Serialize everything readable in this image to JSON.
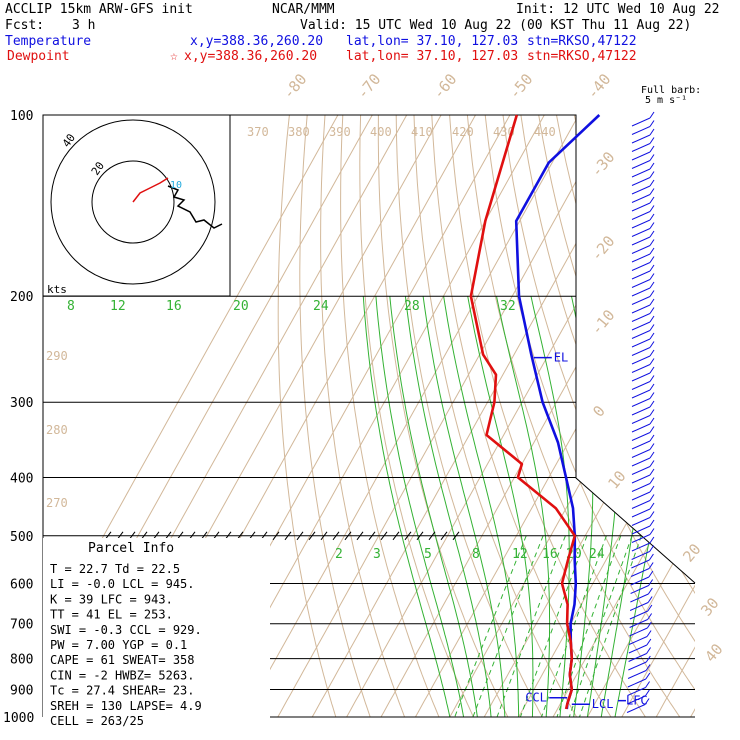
{
  "header": {
    "model": "ACCLIP 15km ARW-GFS init",
    "center": "NCAR/MMM",
    "init": "Init: 12 UTC Wed 10 Aug 22",
    "fcst_label": "Fcst:",
    "fcst_value": "3 h",
    "valid": "Valid: 15 UTC Wed 10 Aug 22 (00 KST Thu 11 Aug 22)"
  },
  "legend": {
    "temp": {
      "name": "Temperature",
      "xy": "x,y=388.36,260.20",
      "latlon": "lat,lon= 37.10, 127.03",
      "stn": "stn=RKSO,47122",
      "color": "#1010e0"
    },
    "dew": {
      "marker": "☆",
      "name": "Dewpoint",
      "xy": "x,y=388.36,260.20",
      "latlon": "lat,lon= 37.10, 127.03",
      "stn": "stn=RKSO,47122",
      "color": "#e01010"
    }
  },
  "barb_key": {
    "line1": "Full barb:",
    "line2": "5 m s⁻¹"
  },
  "hodograph": {
    "unit": "kts",
    "rings": [
      "20",
      "40"
    ],
    "marker": "10"
  },
  "chart_data": {
    "type": "line",
    "title": "",
    "y_scale": "log-pressure",
    "pressure_ticks": [
      100,
      200,
      300,
      400,
      500,
      600,
      700,
      800,
      900,
      1000
    ],
    "top_temp_labels": [
      "-80",
      "-70",
      "-60",
      "-50",
      "-40"
    ],
    "right_temp_labels": [
      "-30",
      "-20",
      "-10",
      "0",
      "10",
      "20",
      "30",
      "40"
    ],
    "theta_labels": [
      "370",
      "380",
      "390",
      "400",
      "410",
      "420",
      "430",
      "440"
    ],
    "theta_left_labels": [
      "290",
      "280",
      "270"
    ],
    "mixing_ratio_upper": [
      "8",
      "12",
      "16",
      "20",
      "24",
      "28",
      "32"
    ],
    "mixing_ratio_lower": [
      "2",
      "3",
      "5",
      "8",
      "12",
      "16",
      "20",
      "24"
    ],
    "series": [
      {
        "name": "Temperature",
        "color": "#1010e0",
        "points": [
          [
            100,
            -64
          ],
          [
            120,
            -71
          ],
          [
            150,
            -71
          ],
          [
            200,
            -58
          ],
          [
            250,
            -45
          ],
          [
            300,
            -34
          ],
          [
            350,
            -23
          ],
          [
            400,
            -15
          ],
          [
            450,
            -8
          ],
          [
            500,
            -3
          ],
          [
            550,
            1
          ],
          [
            600,
            5
          ],
          [
            650,
            8
          ],
          [
            700,
            10
          ],
          [
            750,
            13
          ],
          [
            800,
            16
          ],
          [
            850,
            18
          ],
          [
            900,
            21
          ],
          [
            950,
            22
          ],
          [
            970,
            22.7
          ]
        ]
      },
      {
        "name": "Dewpoint",
        "color": "#e01010",
        "points": [
          [
            100,
            -88
          ],
          [
            150,
            -80
          ],
          [
            200,
            -72
          ],
          [
            250,
            -59
          ],
          [
            270,
            -52
          ],
          [
            300,
            -48
          ],
          [
            340,
            -45
          ],
          [
            380,
            -30
          ],
          [
            400,
            -29
          ],
          [
            450,
            -13
          ],
          [
            500,
            -3
          ],
          [
            550,
            -1
          ],
          [
            600,
            1
          ],
          [
            650,
            6
          ],
          [
            700,
            9
          ],
          [
            750,
            13
          ],
          [
            800,
            16
          ],
          [
            850,
            18
          ],
          [
            900,
            21
          ],
          [
            950,
            22
          ],
          [
            970,
            22.5
          ]
        ]
      }
    ],
    "levels": [
      {
        "label": "EL",
        "pressure": 253,
        "color": "#1010e0"
      },
      {
        "label": "CCL",
        "pressure": 929,
        "color": "#1010e0"
      },
      {
        "label": "LCL",
        "pressure": 945,
        "color": "#1010e0"
      },
      {
        "label": "LFC",
        "pressure": 943,
        "color": "#1010e0"
      }
    ]
  },
  "parcel_info": {
    "title": "Parcel Info",
    "rows": [
      "T   =   22.7  Td =  22.5",
      "LI  =   -0.0  LCL =  945.",
      "K   =     39  LFC =  943.",
      "TT  =     41  EL  =  253.",
      "SWI =   -0.3  CCL =  929.",
      "PW  =   7.00  YGP =   0.1",
      "CAPE =    61  SWEAT=  358",
      "CIN  =    -2  HWBZ= 5263.",
      "Tc  =   27.4  SHEAR=  23.",
      "SREH =   130  LAPSE=  4.9",
      "CELL = 263/25"
    ]
  }
}
